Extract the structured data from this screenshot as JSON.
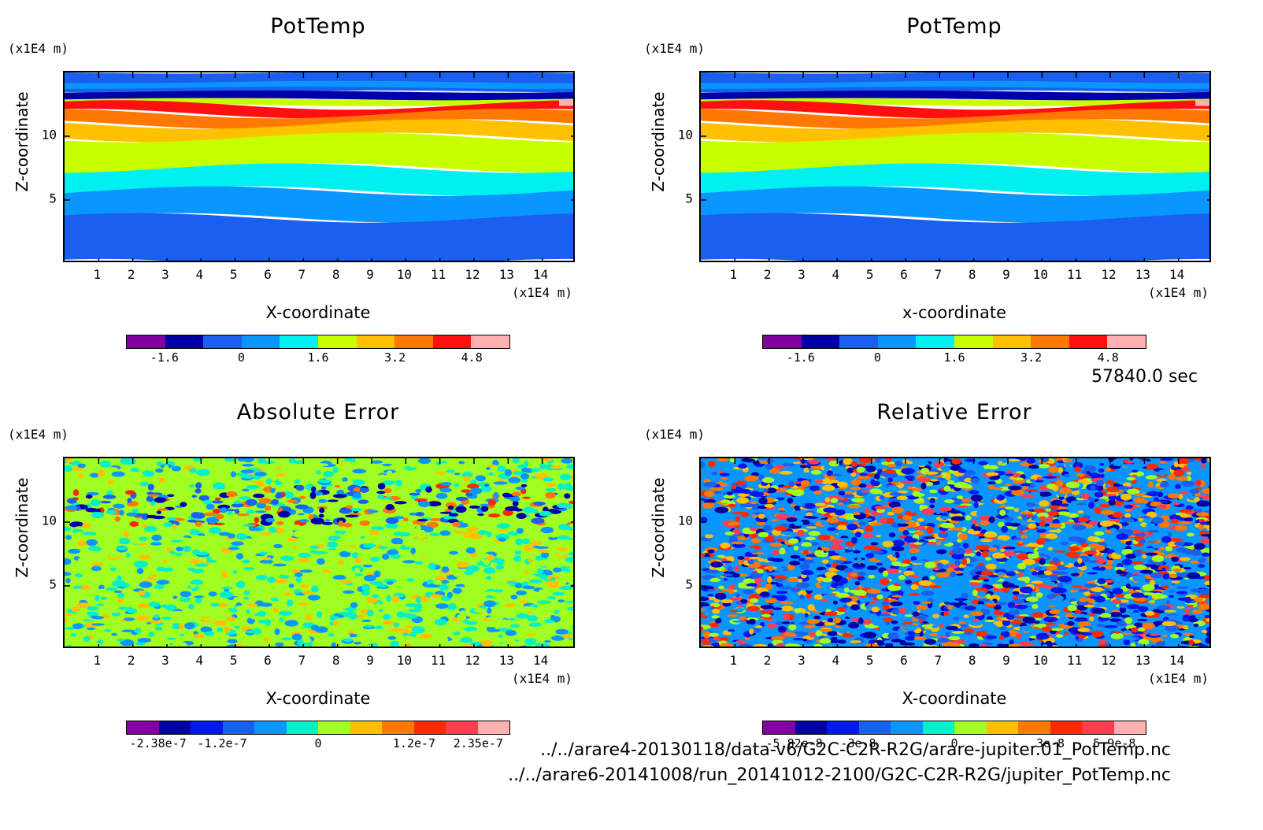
{
  "chart_data": [
    {
      "type": "heatmap",
      "title": "PotTemp",
      "xlabel": "X-coordinate",
      "ylabel": "Z-coordinate",
      "x_unit": "(x1E4 m)",
      "y_unit": "(x1E4 m)",
      "xticks": [
        "1",
        "2",
        "3",
        "4",
        "5",
        "6",
        "7",
        "8",
        "9",
        "10",
        "11",
        "12",
        "13",
        "14"
      ],
      "yticks": [
        "10",
        "5"
      ],
      "xlim": [
        0,
        15
      ],
      "ylim": [
        0,
        15
      ],
      "colorbar_ticks": [
        "-1.6",
        "0",
        "1.6",
        "3.2",
        "4.8"
      ],
      "colorbar_levels": 10,
      "field": "layered"
    },
    {
      "type": "heatmap",
      "title": "PotTemp",
      "xlabel": "x-coordinate",
      "ylabel": "Z-coordinate",
      "x_unit": "(x1E4 m)",
      "y_unit": "(x1E4 m)",
      "xticks": [
        "1",
        "2",
        "3",
        "4",
        "5",
        "6",
        "7",
        "8",
        "9",
        "10",
        "11",
        "12",
        "13",
        "14"
      ],
      "yticks": [
        "10",
        "5"
      ],
      "xlim": [
        0,
        15
      ],
      "ylim": [
        0,
        15
      ],
      "colorbar_ticks": [
        "-1.6",
        "0",
        "1.6",
        "3.2",
        "4.8"
      ],
      "colorbar_levels": 10,
      "field": "layered"
    },
    {
      "type": "heatmap",
      "title": "Absolute Error",
      "xlabel": "X-coordinate",
      "ylabel": "Z-coordinate",
      "x_unit": "(x1E4 m)",
      "y_unit": "(x1E4 m)",
      "xticks": [
        "1",
        "2",
        "3",
        "4",
        "5",
        "6",
        "7",
        "8",
        "9",
        "10",
        "11",
        "12",
        "13",
        "14"
      ],
      "yticks": [
        "10",
        "5"
      ],
      "xlim": [
        0,
        15
      ],
      "ylim": [
        0,
        15
      ],
      "colorbar_ticks": [
        "-2.38e-7",
        "-1.2e-7",
        "0",
        "1.2e-7",
        "2.35e-7"
      ],
      "colorbar_levels": 12,
      "field": "noise-abs"
    },
    {
      "type": "heatmap",
      "title": "Relative Error",
      "xlabel": "X-coordinate",
      "ylabel": "Z-coordinate",
      "x_unit": "(x1E4 m)",
      "y_unit": "(x1E4 m)",
      "xticks": [
        "1",
        "2",
        "3",
        "4",
        "5",
        "6",
        "7",
        "8",
        "9",
        "10",
        "11",
        "12",
        "13",
        "14"
      ],
      "yticks": [
        "10",
        "5"
      ],
      "xlim": [
        0,
        15
      ],
      "ylim": [
        0,
        15
      ],
      "colorbar_ticks": [
        "-5.82e-8",
        "-3e-8",
        "0",
        "3e-8",
        "5.9e-8"
      ],
      "colorbar_levels": 12,
      "field": "noise-rel"
    }
  ],
  "colors": {
    "levels10": [
      "#8000a0",
      "#0000a8",
      "#1a5ff0",
      "#0a96ff",
      "#00f0f0",
      "#c8ff00",
      "#ffc000",
      "#ff7800",
      "#ff1010",
      "#ffb0b0"
    ],
    "levels12": [
      "#8000a0",
      "#0000a8",
      "#0018f0",
      "#1a5ff0",
      "#0a96ff",
      "#00f0c8",
      "#a0ff20",
      "#ffc000",
      "#ff7800",
      "#ff2800",
      "#ff3c50",
      "#ffb0b0"
    ]
  },
  "time_label": "57840.0 sec",
  "file_paths": [
    "../../arare4-20130118/data-v6/G2C-C2R-R2G/arare-jupiter.01_PotTemp.nc",
    "../../arare6-20141008/run_20141012-2100/G2C-C2R-R2G/jupiter_PotTemp.nc"
  ]
}
